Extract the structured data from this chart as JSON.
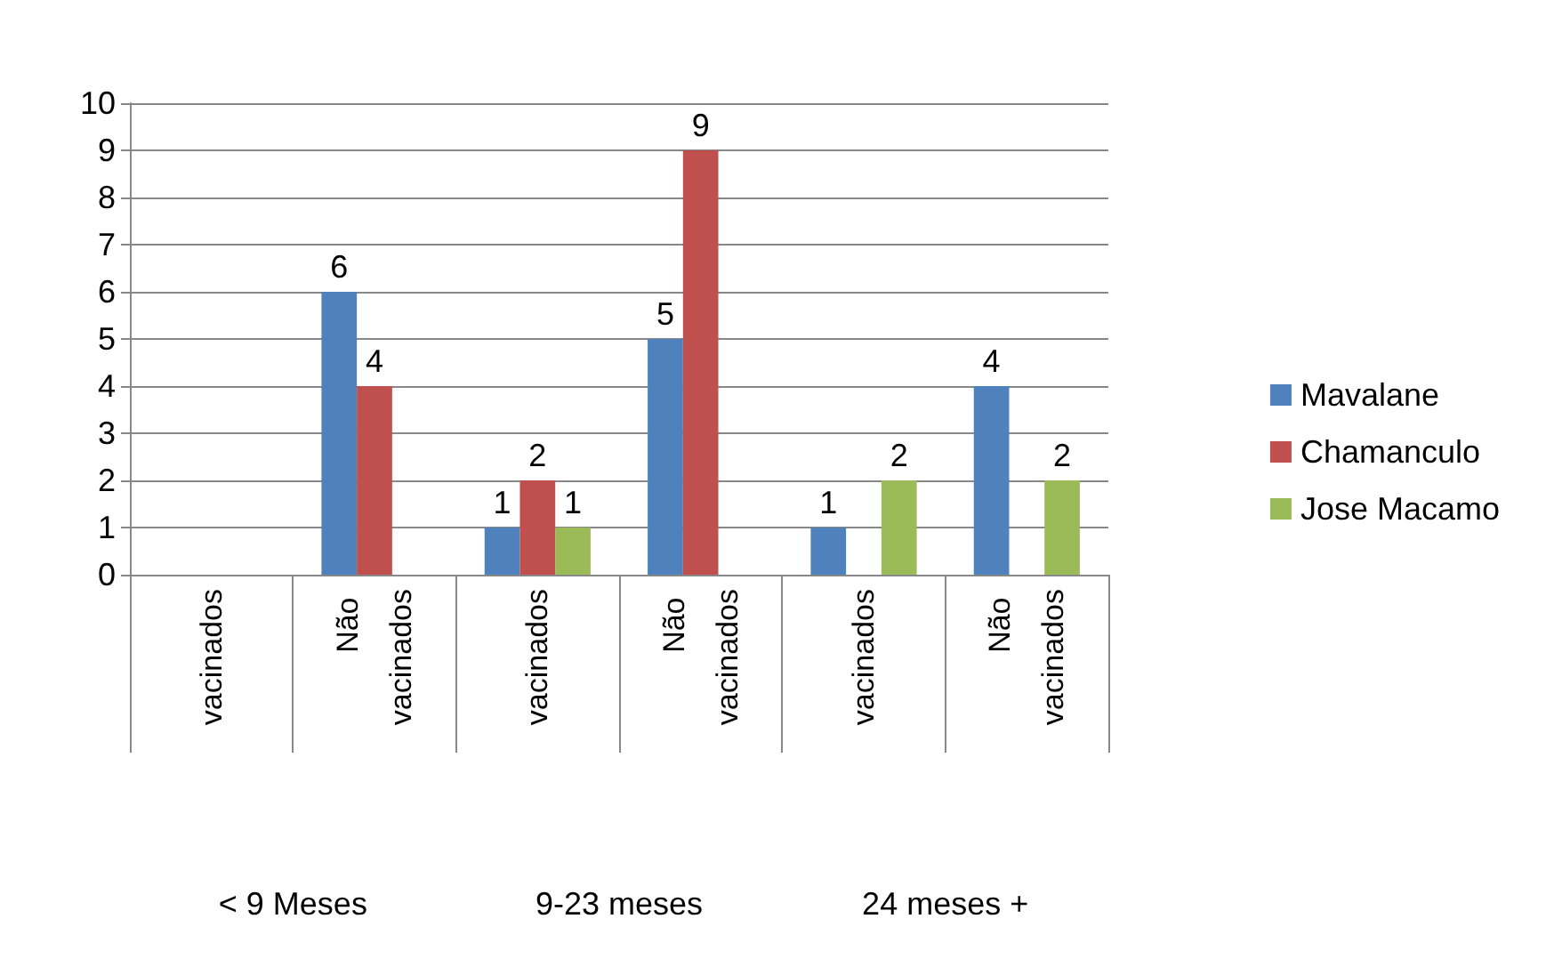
{
  "chart_data": {
    "type": "bar",
    "categories": [
      "vacinados",
      "Não vacinados",
      "vacinados",
      "Não vacinados",
      "vacinados",
      "Não vacinados"
    ],
    "series": [
      {
        "name": "Mavalane",
        "color": "#4f81bd",
        "values": [
          null,
          6,
          1,
          5,
          1,
          4
        ]
      },
      {
        "name": "Chamanculo",
        "color": "#c0504d",
        "values": [
          null,
          4,
          2,
          9,
          null,
          null
        ]
      },
      {
        "name": "Jose Macamo",
        "color": "#9bbb59",
        "values": [
          null,
          null,
          1,
          null,
          2,
          2
        ]
      }
    ],
    "annotations": [
      "< 9 Meses",
      "9-23 meses",
      "24 meses +"
    ],
    "ylim": [
      0,
      10
    ],
    "yticks": [
      0,
      1,
      2,
      3,
      4,
      5,
      6,
      7,
      8,
      9,
      10
    ],
    "grid": "y",
    "legend": "right",
    "data_labels": true
  }
}
